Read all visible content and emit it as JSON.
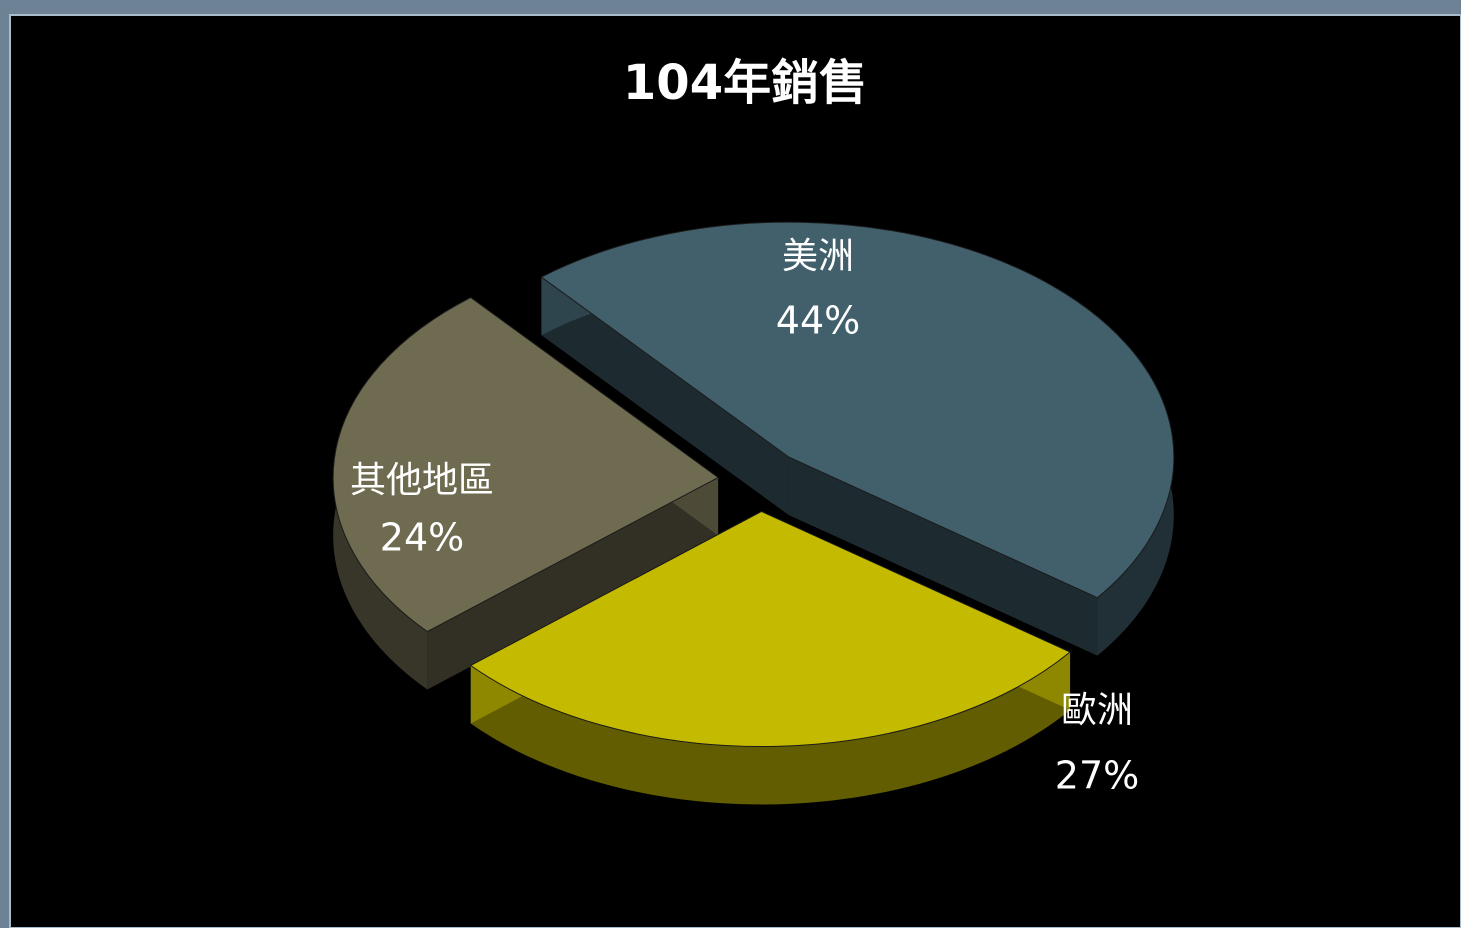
{
  "chart_data": {
    "type": "pie",
    "title": "104年銷售",
    "categories": [
      "美洲",
      "歐洲",
      "其他地區"
    ],
    "values": [
      44,
      27,
      24
    ],
    "value_labels": [
      "44%",
      "27%",
      "24%"
    ],
    "colors": [
      "#41606c",
      "#c4ba00",
      "#6f6b50"
    ]
  }
}
